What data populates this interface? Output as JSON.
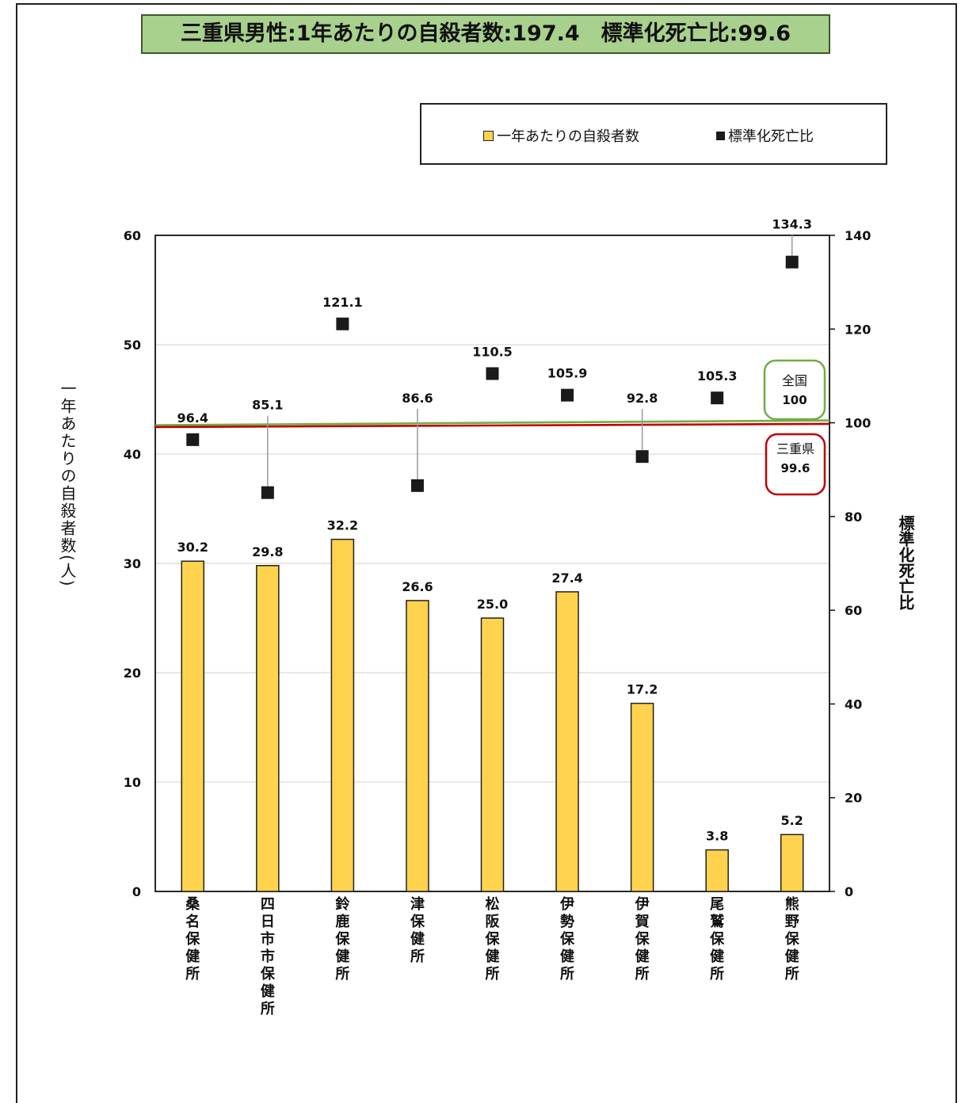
{
  "title": "三重県男性:1年あたりの自殺者数:197.4　標準化死亡比:99.6",
  "legend": {
    "bar_label": "一年あたりの自殺者数",
    "marker_label": "標準化死亡比"
  },
  "callouts": {
    "national_label": "全国",
    "national_value": "100",
    "prefecture_label": "三重県",
    "prefecture_value": "99.6"
  },
  "colors": {
    "bar": "#ffd34d",
    "marker": "#1a1a1a",
    "national_line": "#70ad47",
    "prefecture_line": "#c00000"
  },
  "chart_data": {
    "type": "bar",
    "categories": [
      "桑名保健所",
      "四日市市保健所",
      "鈴鹿保健所",
      "津保健所",
      "松阪保健所",
      "伊勢保健所",
      "伊賀保健所",
      "尾鷲保健所",
      "熊野保健所"
    ],
    "series": [
      {
        "name": "一年あたりの自殺者数",
        "type": "bar",
        "axis": "left",
        "values": [
          30.2,
          29.8,
          32.2,
          26.6,
          25.0,
          27.4,
          17.2,
          3.8,
          5.2
        ],
        "labels": [
          "30.2",
          "29.8",
          "32.2",
          "26.6",
          "25.0",
          "27.4",
          "17.2",
          "3.8",
          "5.2"
        ]
      },
      {
        "name": "標準化死亡比",
        "type": "scatter",
        "axis": "right",
        "values": [
          96.4,
          85.1,
          121.1,
          86.6,
          110.5,
          105.9,
          92.8,
          105.3,
          134.3
        ],
        "labels": [
          "96.4",
          "85.1",
          "121.1",
          "86.6",
          "110.5",
          "105.9",
          "92.8",
          "105.3",
          "134.3"
        ]
      }
    ],
    "reference_lines": [
      {
        "label": "全国",
        "value": 100
      },
      {
        "label": "三重県",
        "value": 99.6
      }
    ],
    "ylabel": "一年あたりの自殺者数(人)",
    "y2label": "標準化死亡比",
    "ylim": [
      0,
      60
    ],
    "y2lim": [
      0,
      140
    ],
    "yticks": [
      "0",
      "10",
      "20",
      "30",
      "40",
      "50",
      "60"
    ],
    "y2ticks": [
      "0",
      "20",
      "40",
      "60",
      "80",
      "100",
      "120",
      "140"
    ],
    "grid": true
  }
}
